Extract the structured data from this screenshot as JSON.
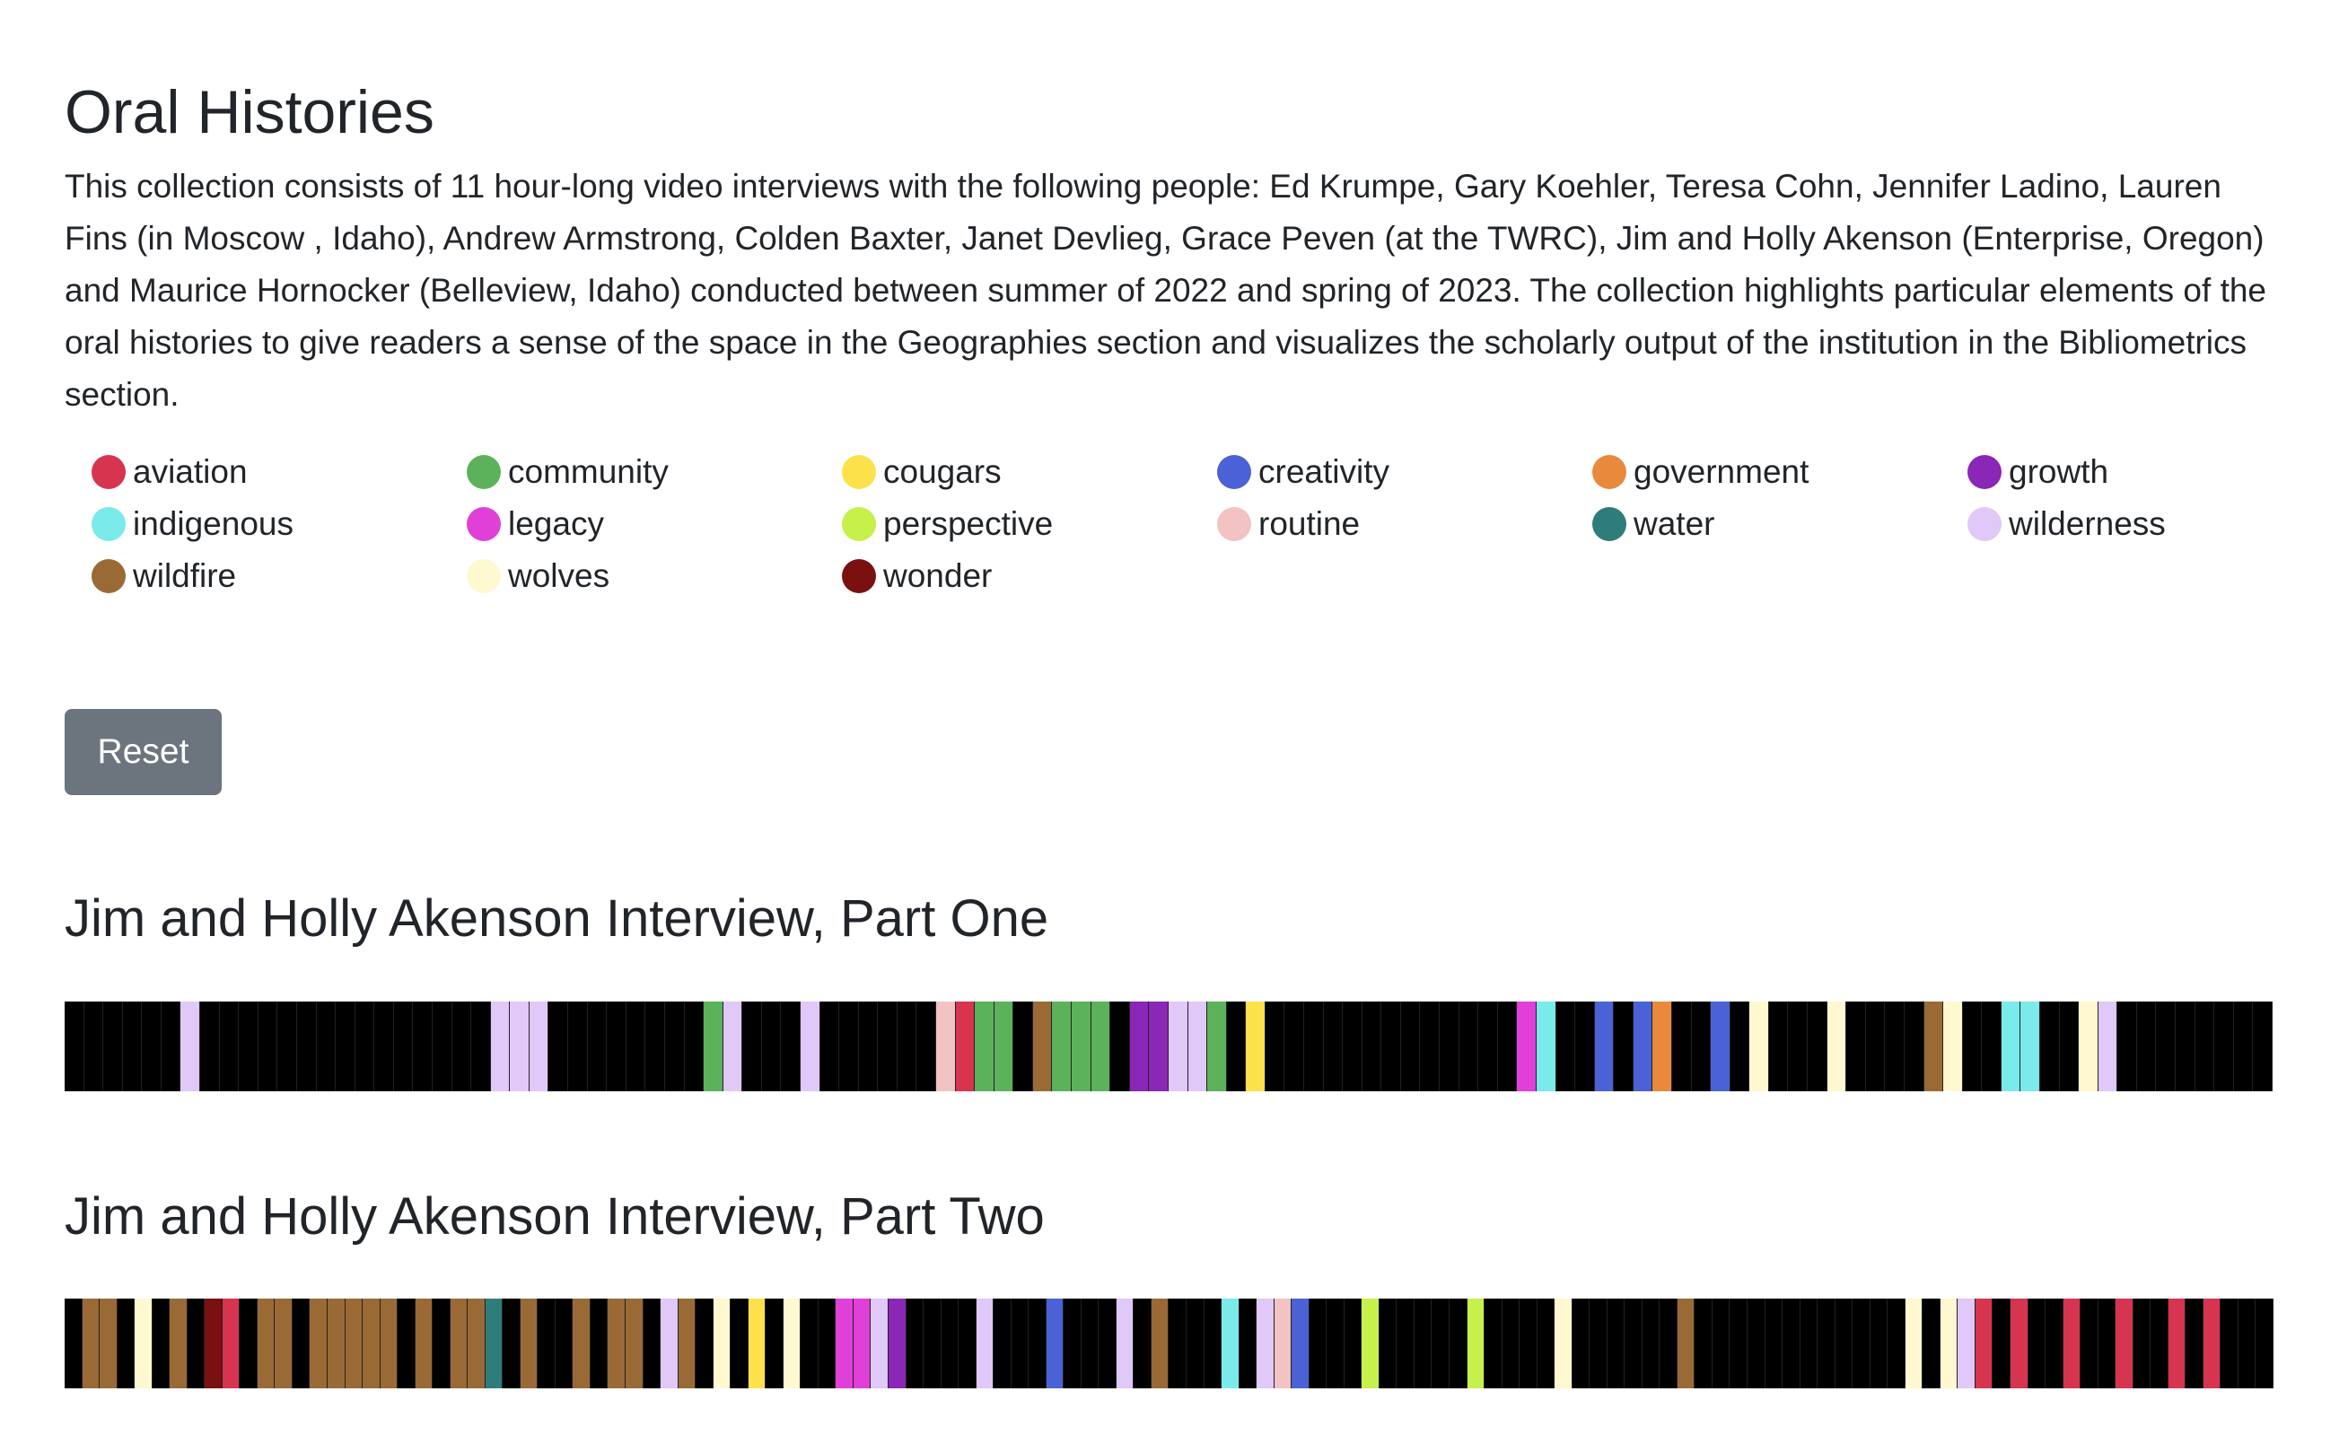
{
  "title": "Oral Histories",
  "description": "This collection consists of 11 hour-long video interviews with the following people: Ed Krumpe, Gary Koehler, Teresa Cohn, Jennifer Ladino, Lauren Fins (in Moscow , Idaho), Andrew Armstrong, Colden Baxter, Janet Devlieg, Grace Peven (at the TWRC), Jim and Holly Akenson (Enterprise, Oregon) and Maurice Hornocker (Belleview, Idaho) conducted between summer of 2022 and spring of 2023. The collection highlights particular elements of the oral histories to give readers a sense of the space in the Geographies section and visualizes the scholarly output of the institution in the Bibliometrics section.",
  "legend": [
    {
      "label": "aviation",
      "color": "#d7344f"
    },
    {
      "label": "community",
      "color": "#5cb25a"
    },
    {
      "label": "cougars",
      "color": "#fde14a"
    },
    {
      "label": "creativity",
      "color": "#4a62d6"
    },
    {
      "label": "government",
      "color": "#e8893c"
    },
    {
      "label": "growth",
      "color": "#8a27b6"
    },
    {
      "label": "indigenous",
      "color": "#7aeaea"
    },
    {
      "label": "legacy",
      "color": "#e040d8"
    },
    {
      "label": "perspective",
      "color": "#c6f04a"
    },
    {
      "label": "routine",
      "color": "#f3c2c2"
    },
    {
      "label": "water",
      "color": "#2f7d7a"
    },
    {
      "label": "wilderness",
      "color": "#e0c8f8"
    },
    {
      "label": "wildfire",
      "color": "#9a6a36"
    },
    {
      "label": "wolves",
      "color": "#fff8d0"
    },
    {
      "label": "wonder",
      "color": "#7a1010"
    }
  ],
  "reset_label": "Reset",
  "interviews": [
    {
      "title": "Jim and Holly Akenson Interview, Part One",
      "segments": [
        "",
        "",
        "",
        "",
        "",
        "",
        "wilderness",
        "",
        "",
        "",
        "",
        "",
        "",
        "",
        "",
        "",
        "",
        "",
        "",
        "",
        "",
        "",
        "wilderness",
        "wilderness",
        "wilderness",
        "",
        "",
        "",
        "",
        "",
        "",
        "",
        "",
        "community",
        "wilderness",
        "",
        "",
        "",
        "wilderness",
        "",
        "",
        "",
        "",
        "",
        "",
        "routine",
        "aviation",
        "community",
        "community",
        "",
        "wildfire",
        "community",
        "community",
        "community",
        "",
        "growth",
        "growth",
        "wilderness",
        "wilderness",
        "community",
        "",
        "cougars",
        "",
        "",
        "",
        "",
        "",
        "",
        "",
        "",
        "",
        "",
        "",
        "",
        "",
        "legacy",
        "indigenous",
        "",
        "",
        "creativity",
        "",
        "creativity",
        "government",
        "",
        "",
        "creativity",
        "",
        "wolves",
        "",
        "",
        "",
        "wolves",
        "",
        "",
        "",
        "",
        "wildfire",
        "wolves",
        "",
        "",
        "indigenous",
        "indigenous",
        "",
        "",
        "wolves",
        "wilderness",
        "",
        "",
        "",
        "",
        "",
        "",
        "",
        ""
      ]
    },
    {
      "title": "Jim and Holly Akenson Interview, Part Two",
      "segments": [
        "",
        "wildfire",
        "wildfire",
        "",
        "wolves",
        "",
        "wildfire",
        "",
        "wonder",
        "aviation",
        "",
        "wildfire",
        "wildfire",
        "",
        "wildfire",
        "wildfire",
        "wildfire",
        "wildfire",
        "wildfire",
        "",
        "wildfire",
        "",
        "wildfire",
        "wildfire",
        "water",
        "",
        "wildfire",
        "",
        "",
        "wildfire",
        "",
        "wildfire",
        "wildfire",
        "",
        "wilderness",
        "wildfire",
        "",
        "wolves",
        "",
        "cougars",
        "",
        "wolves",
        "",
        "",
        "legacy",
        "legacy",
        "wilderness",
        "growth",
        "",
        "",
        "",
        "",
        "wilderness",
        "",
        "",
        "",
        "creativity",
        "",
        "",
        "",
        "wilderness",
        "",
        "wildfire",
        "",
        "",
        "",
        "indigenous",
        "",
        "wilderness",
        "routine",
        "creativity",
        "",
        "",
        "",
        "perspective",
        "",
        "",
        "",
        "",
        "",
        "perspective",
        "",
        "",
        "",
        "",
        "wolves",
        "",
        "",
        "",
        "",
        "",
        "",
        "wildfire",
        "",
        "",
        "",
        "",
        "",
        "",
        "",
        "",
        "",
        "",
        "",
        "",
        "wolves",
        "",
        "wolves",
        "wilderness",
        "aviation",
        "",
        "aviation",
        "",
        "",
        "aviation",
        "",
        "",
        "aviation",
        "",
        "",
        "aviation",
        "",
        "aviation",
        "",
        "",
        ""
      ]
    }
  ]
}
